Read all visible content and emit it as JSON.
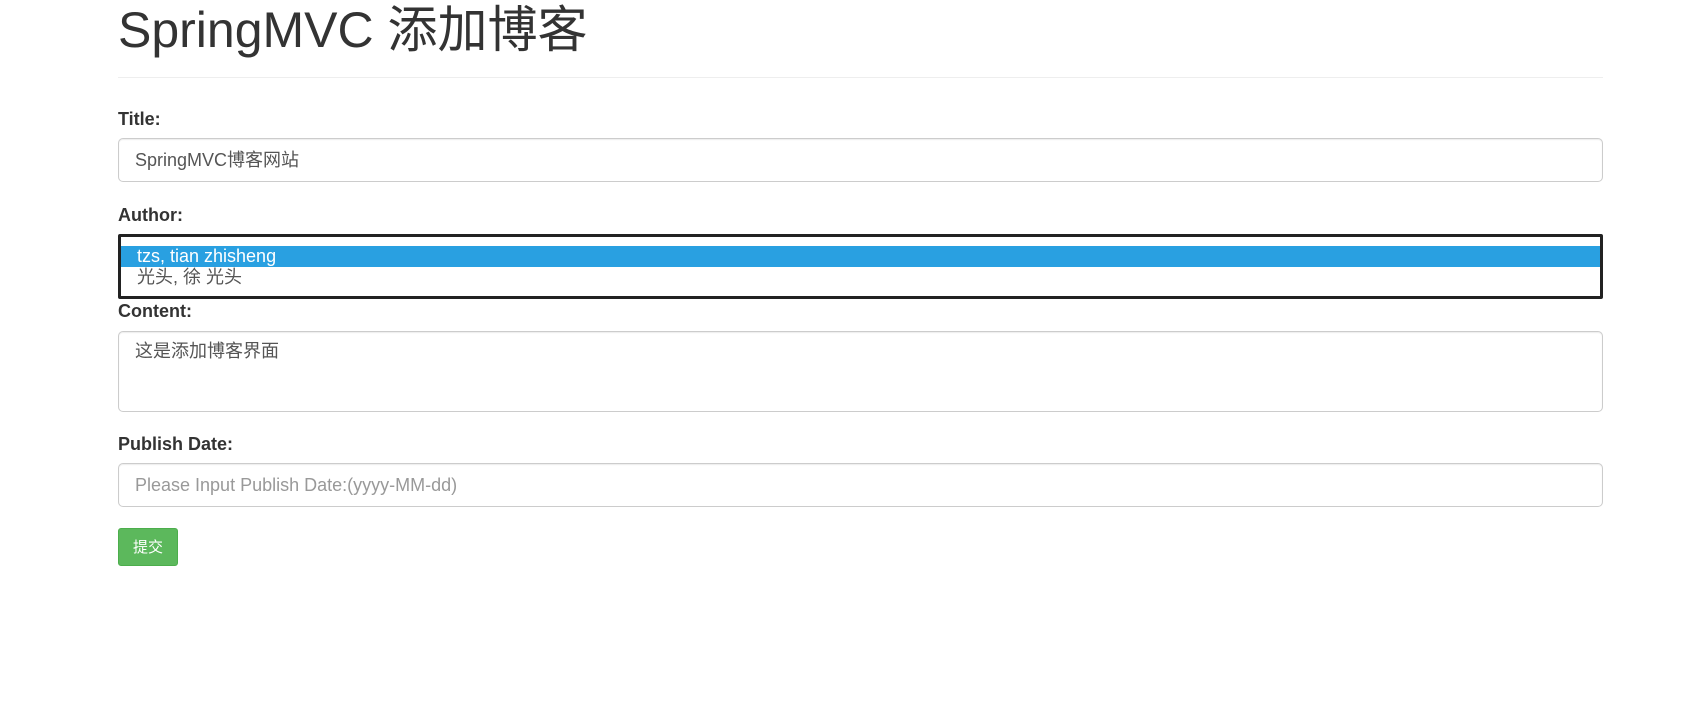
{
  "page": {
    "title": "SpringMVC 添加博客"
  },
  "form": {
    "title_field": {
      "label": "Title:",
      "value": "SpringMVC博客网站"
    },
    "author_field": {
      "label": "Author:",
      "options": [
        "tzs, tian zhisheng",
        "光头, 徐 光头"
      ],
      "selected": "tzs, tian zhisheng"
    },
    "content_field": {
      "label": "Content:",
      "value": "这是添加博客界面"
    },
    "publish_date_field": {
      "label": "Publish Date:",
      "value": "",
      "placeholder": "Please Input Publish Date:(yyyy-MM-dd)"
    },
    "submit_label": "提交"
  },
  "colors": {
    "selected_option_bg": "#29a0e1",
    "submit_button_bg": "#5cb85c"
  }
}
